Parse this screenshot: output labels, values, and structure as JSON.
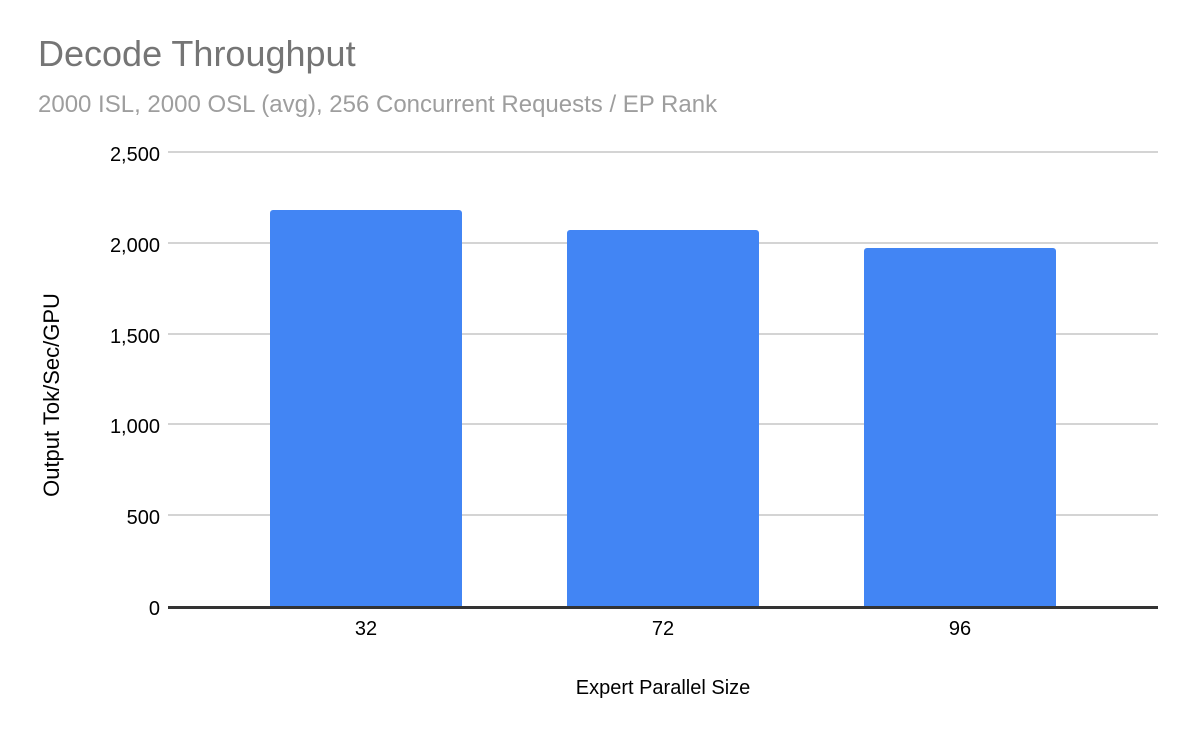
{
  "chart_data": {
    "type": "bar",
    "title": "Decode Throughput",
    "subtitle": "2000 ISL, 2000 OSL (avg), 256 Concurrent Requests / EP Rank",
    "xlabel": "Expert Parallel Size",
    "ylabel": "Output Tok/Sec/GPU",
    "categories": [
      "32",
      "72",
      "96"
    ],
    "values": [
      2180,
      2070,
      1970
    ],
    "ylim": [
      0,
      2500
    ],
    "ytick_step": 500,
    "ytick_labels": [
      "0",
      "500",
      "1,000",
      "1,500",
      "2,000",
      "2,500"
    ],
    "grid": "horizontal gridlines on",
    "legend": "none",
    "colors": {
      "bar": "#4285f4",
      "title": "#757575",
      "subtitle": "#9e9e9e",
      "axis_text": "#000000",
      "gridline": "#d4d4d4",
      "axis_line": "#333333",
      "background": "#ffffff"
    }
  }
}
